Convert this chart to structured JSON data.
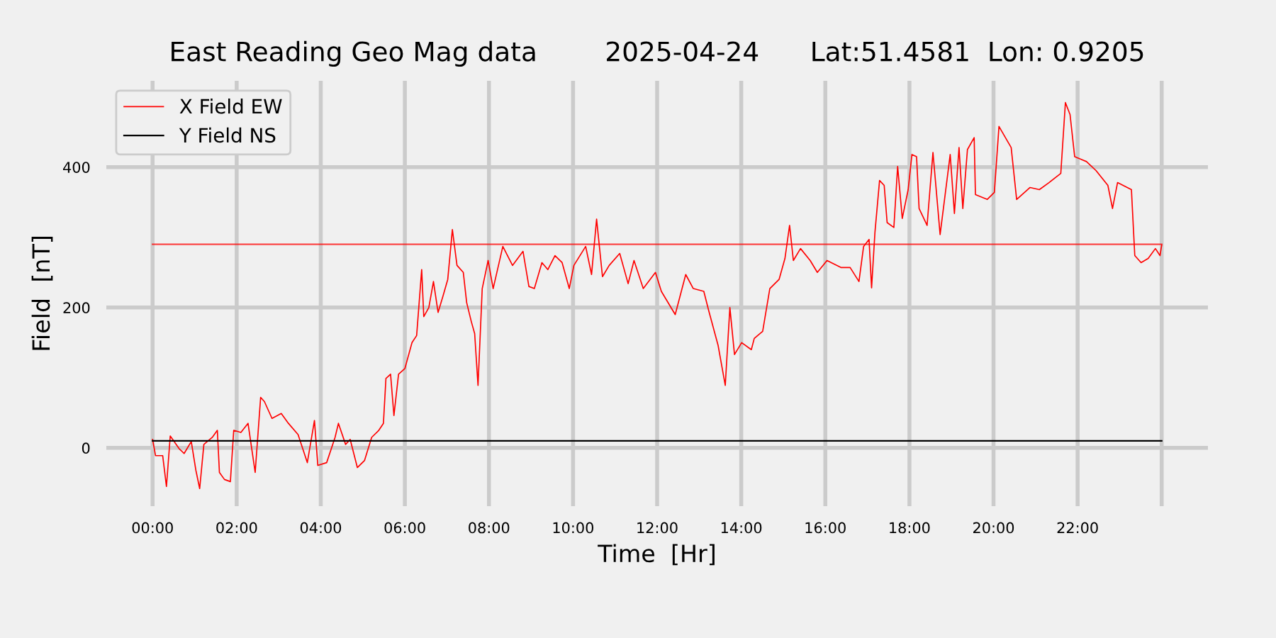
{
  "chart_data": {
    "type": "line",
    "title": "East Reading Geo Mag data        2025-04-24      Lat:51.4581  Lon: 0.9205",
    "xlabel": "Time  [Hr]",
    "ylabel": "Field  [nT]",
    "series": [
      {
        "name": "X Field EW",
        "color": "#ff0000",
        "x": [
          0,
          0.07,
          0.24,
          0.33,
          0.42,
          0.63,
          0.75,
          0.92,
          1.03,
          1.12,
          1.22,
          1.42,
          1.54,
          1.59,
          1.71,
          1.85,
          1.93,
          2.1,
          2.27,
          2.44,
          2.57,
          2.66,
          2.84,
          3.06,
          3.23,
          3.46,
          3.57,
          3.68,
          3.85,
          3.93,
          4.14,
          4.34,
          4.42,
          4.59,
          4.7,
          4.87,
          5.04,
          5.21,
          5.38,
          5.49,
          5.55,
          5.66,
          5.74,
          5.85,
          6.0,
          6.17,
          6.28,
          6.4,
          6.45,
          6.57,
          6.68,
          6.79,
          6.91,
          7.02,
          7.13,
          7.24,
          7.39,
          7.47,
          7.58,
          7.66,
          7.74,
          7.84,
          7.98,
          8.1,
          8.33,
          8.56,
          8.81,
          8.95,
          9.08,
          9.26,
          9.4,
          9.57,
          9.74,
          9.91,
          10.02,
          10.3,
          10.44,
          10.56,
          10.7,
          10.86,
          11.11,
          11.31,
          11.45,
          11.67,
          11.96,
          12.1,
          12.43,
          12.68,
          12.86,
          13.11,
          13.22,
          13.45,
          13.62,
          13.73,
          13.84,
          14.01,
          14.24,
          14.31,
          14.51,
          14.68,
          14.9,
          15.04,
          15.15,
          15.24,
          15.41,
          15.64,
          15.81,
          16.04,
          16.37,
          16.59,
          16.8,
          16.91,
          17.04,
          17.1,
          17.18,
          17.29,
          17.4,
          17.47,
          17.63,
          17.72,
          17.83,
          17.97,
          18.06,
          18.17,
          18.23,
          18.42,
          18.56,
          18.73,
          18.97,
          19.07,
          19.18,
          19.27,
          19.38,
          19.54,
          19.57,
          19.85,
          20.02,
          20.13,
          20.42,
          20.55,
          20.87,
          21.09,
          21.32,
          21.6,
          21.71,
          21.82,
          21.93,
          22.21,
          22.44,
          22.72,
          22.83,
          22.95,
          23.28,
          23.36,
          23.51,
          23.68,
          23.85,
          23.96,
          24.0
        ],
        "values": [
          12,
          -11,
          -11,
          -55,
          17,
          -1,
          -8,
          9,
          -32,
          -58,
          5,
          15,
          25,
          -35,
          -45,
          -48,
          25,
          22,
          35,
          -35,
          72,
          66,
          42,
          49,
          35,
          19,
          -1,
          -21,
          39,
          -25,
          -21,
          15,
          35,
          5,
          12,
          -28,
          -18,
          15,
          25,
          35,
          99,
          105,
          46,
          105,
          113,
          150,
          160,
          254,
          187,
          200,
          237,
          193,
          217,
          240,
          311,
          260,
          250,
          207,
          180,
          163,
          89,
          227,
          267,
          227,
          287,
          260,
          280,
          230,
          227,
          264,
          254,
          274,
          264,
          227,
          260,
          287,
          247,
          326,
          244,
          260,
          277,
          234,
          267,
          227,
          250,
          223,
          190,
          247,
          227,
          223,
          197,
          146,
          89,
          200,
          133,
          150,
          140,
          156,
          166,
          227,
          240,
          270,
          317,
          267,
          284,
          267,
          250,
          267,
          257,
          257,
          237,
          287,
          297,
          228,
          307,
          381,
          374,
          321,
          314,
          401,
          327,
          368,
          418,
          415,
          341,
          317,
          421,
          304,
          418,
          334,
          428,
          341,
          425,
          442,
          361,
          354,
          364,
          458,
          428,
          354,
          371,
          368,
          378,
          391,
          492,
          475,
          415,
          408,
          395,
          374,
          341,
          378,
          368,
          274,
          264,
          270,
          284,
          274,
          289
        ]
      },
      {
        "name": "Y Field NS",
        "color": "#000000",
        "x": [
          0,
          24
        ],
        "values": [
          10,
          10
        ]
      }
    ],
    "ref_lines": [
      {
        "axis": "y",
        "value": 290,
        "color": "#ff0000"
      }
    ],
    "xlim": [
      -1.1,
      25.1
    ],
    "ylim": [
      -83,
      523
    ],
    "xticks": [
      {
        "value": 0,
        "label": "00:00"
      },
      {
        "value": 2,
        "label": "02:00"
      },
      {
        "value": 4,
        "label": "04:00"
      },
      {
        "value": 6,
        "label": "06:00"
      },
      {
        "value": 8,
        "label": "08:00"
      },
      {
        "value": 10,
        "label": "10:00"
      },
      {
        "value": 12,
        "label": "12:00"
      },
      {
        "value": 14,
        "label": "14:00"
      },
      {
        "value": 16,
        "label": "16:00"
      },
      {
        "value": 18,
        "label": "18:00"
      },
      {
        "value": 20,
        "label": "20:00"
      },
      {
        "value": 22,
        "label": "22:00"
      },
      {
        "value": 24,
        "label": null
      }
    ],
    "yticks": [
      0,
      200,
      400
    ],
    "grid": true,
    "legend": "top left",
    "marker": "none",
    "line_style": "solid"
  }
}
